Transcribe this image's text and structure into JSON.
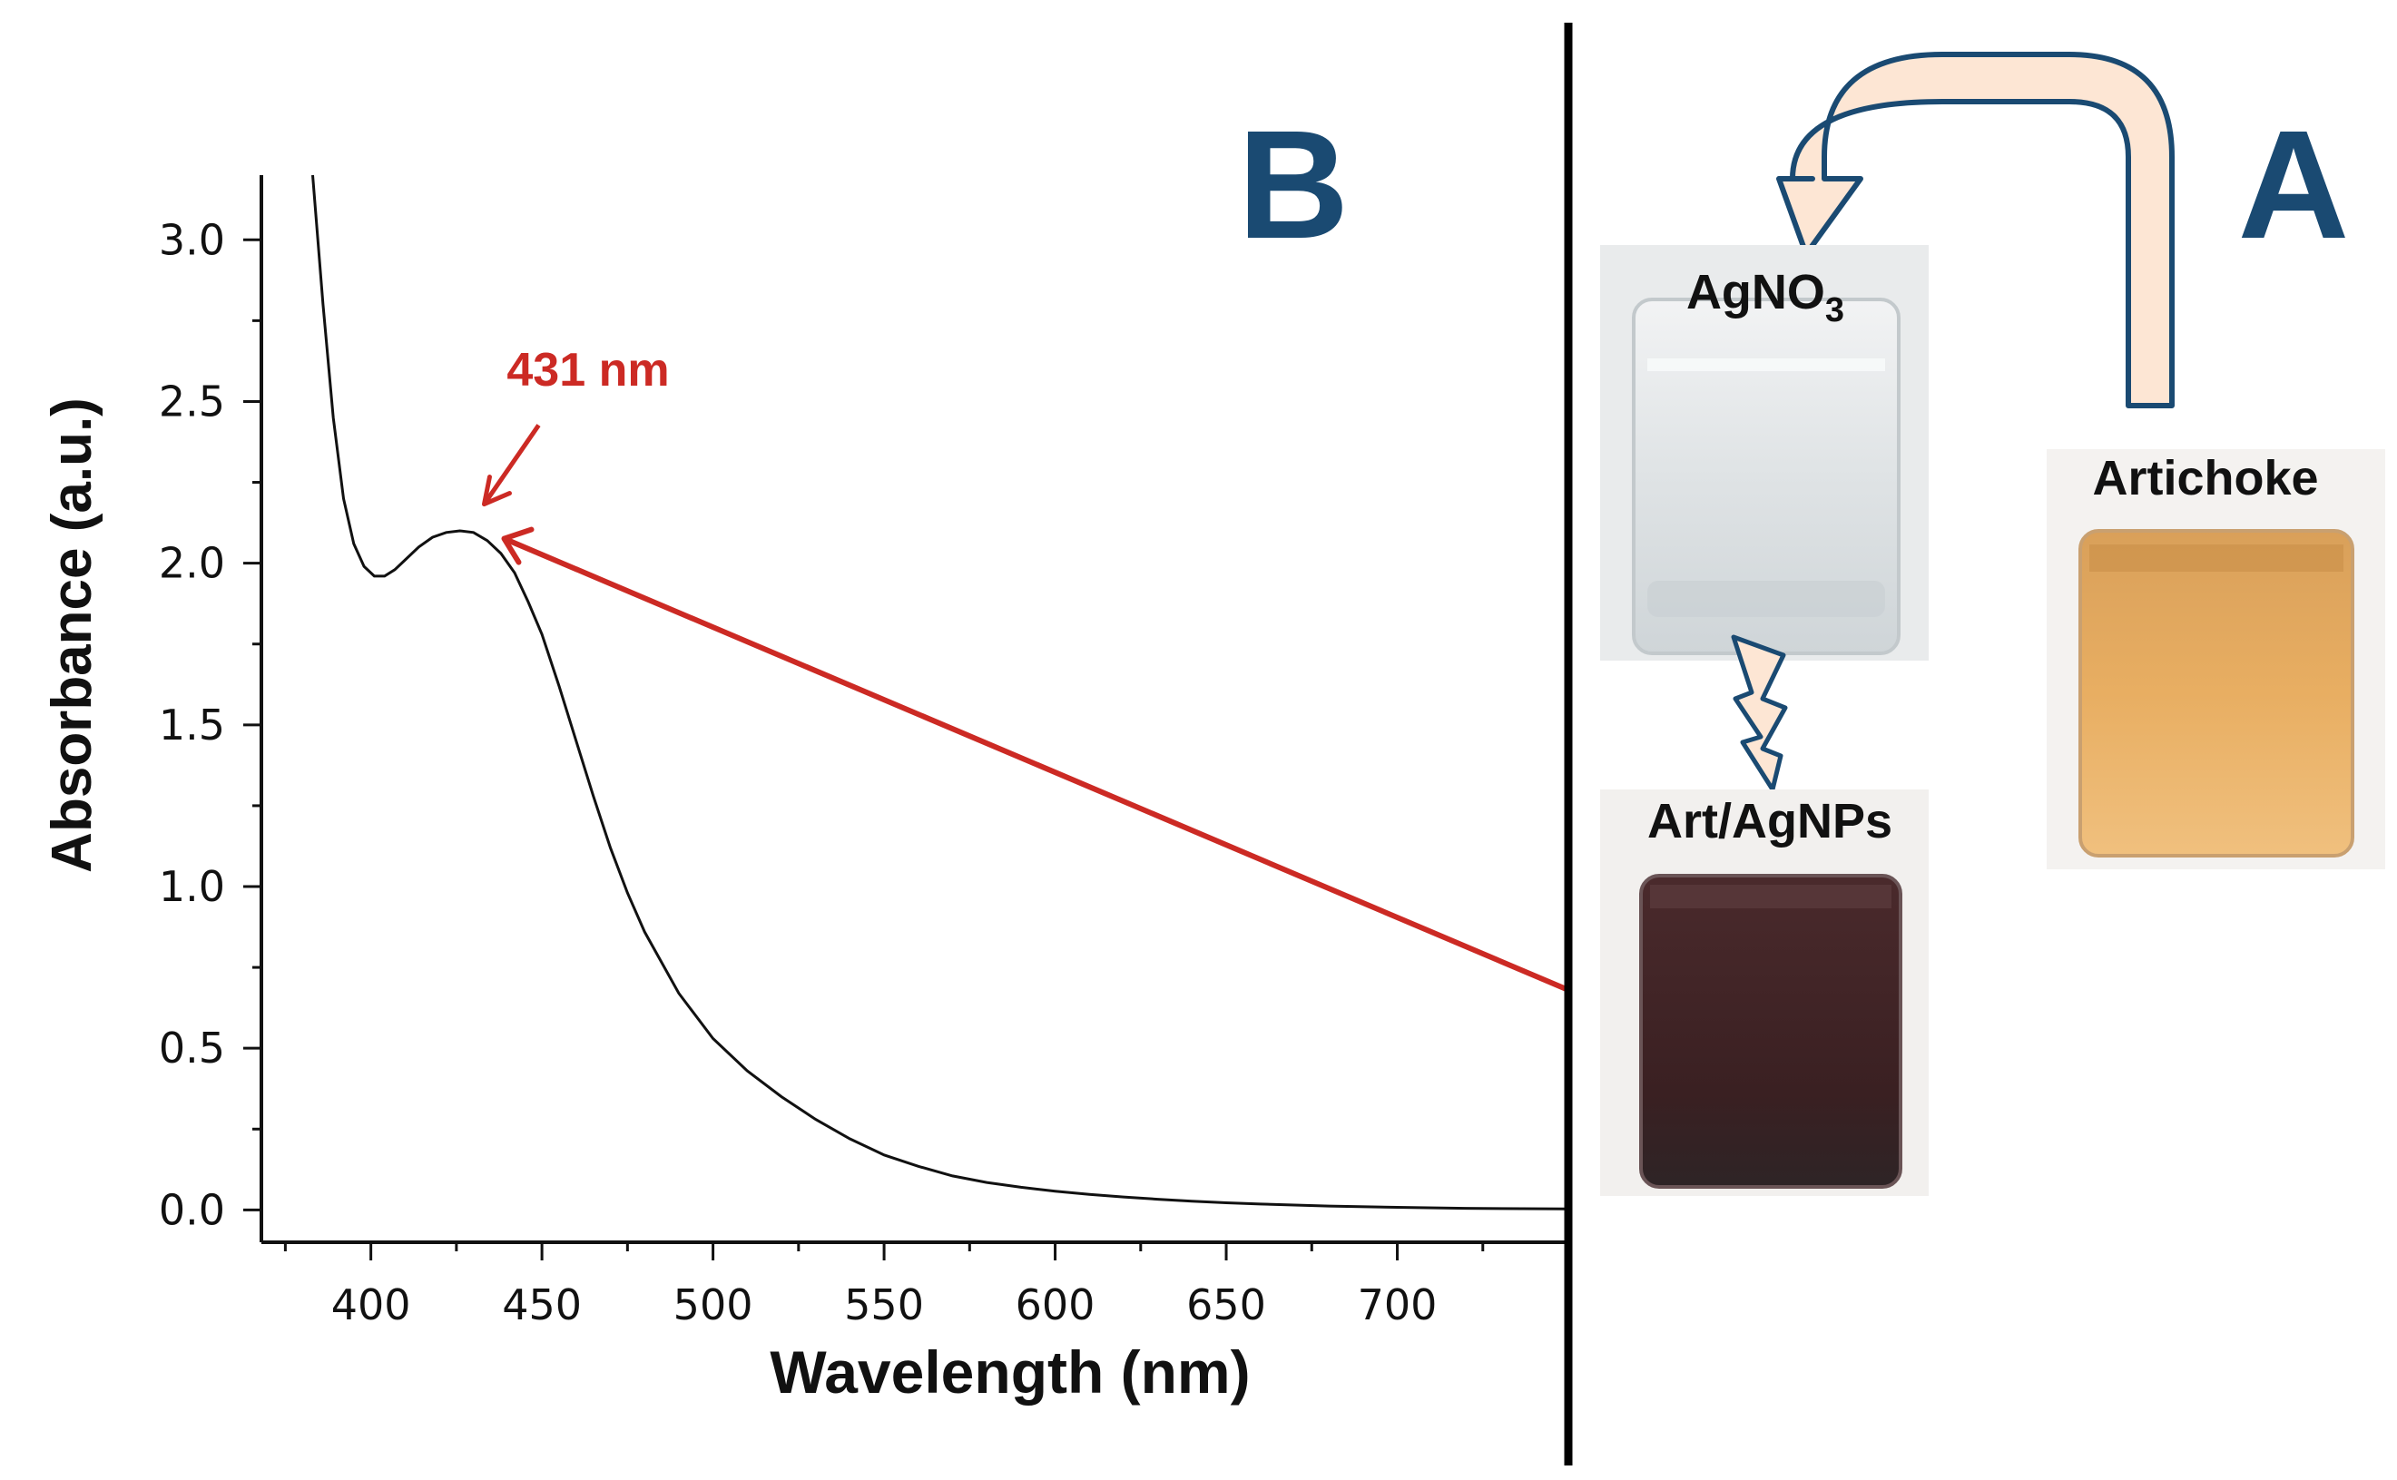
{
  "panel_b": {
    "label": "B"
  },
  "panel_a": {
    "label": "A",
    "samples": [
      {
        "name": "AgNO",
        "subscript": "3",
        "color": "#dfe3e5"
      },
      {
        "name": "Art/AgNPs",
        "color": "#3a2022"
      },
      {
        "name": "Artichoke",
        "color": "#e8ae62"
      }
    ]
  },
  "chart_data": {
    "type": "line",
    "title": "",
    "xlabel": "Wavelength (nm)",
    "ylabel": "Absorbance (a.u.)",
    "xlim": [
      368,
      750
    ],
    "ylim": [
      -0.1,
      3.2
    ],
    "xticks": [
      400,
      450,
      500,
      550,
      600,
      650,
      700
    ],
    "yticks": [
      0.0,
      0.5,
      1.0,
      1.5,
      2.0,
      2.5,
      3.0
    ],
    "xtick_labels": [
      "400",
      "450",
      "500",
      "550",
      "600",
      "650",
      "700"
    ],
    "ytick_labels": [
      "0.0",
      "0.5",
      "1.0",
      "1.5",
      "2.0",
      "2.5",
      "3.0"
    ],
    "annotation": {
      "text": "431 nm",
      "x": 431,
      "y": 2.09,
      "color": "#cc2a24"
    },
    "series": [
      {
        "name": "Art/AgNPs",
        "color": "#111111",
        "x": [
          383,
          386,
          389,
          392,
          395,
          398,
          401,
          404,
          407,
          410,
          414,
          418,
          422,
          426,
          430,
          434,
          438,
          442,
          446,
          450,
          455,
          460,
          465,
          470,
          475,
          480,
          490,
          500,
          510,
          520,
          530,
          540,
          550,
          560,
          570,
          580,
          590,
          600,
          610,
          620,
          630,
          640,
          650,
          660,
          680,
          700,
          720,
          750
        ],
        "y": [
          3.2,
          2.8,
          2.45,
          2.2,
          2.06,
          1.99,
          1.96,
          1.96,
          1.98,
          2.01,
          2.05,
          2.08,
          2.095,
          2.1,
          2.095,
          2.07,
          2.03,
          1.97,
          1.88,
          1.78,
          1.62,
          1.45,
          1.28,
          1.12,
          0.98,
          0.86,
          0.67,
          0.53,
          0.43,
          0.35,
          0.28,
          0.22,
          0.17,
          0.135,
          0.105,
          0.085,
          0.07,
          0.058,
          0.048,
          0.04,
          0.033,
          0.027,
          0.022,
          0.018,
          0.012,
          0.008,
          0.005,
          0.003
        ]
      }
    ]
  }
}
